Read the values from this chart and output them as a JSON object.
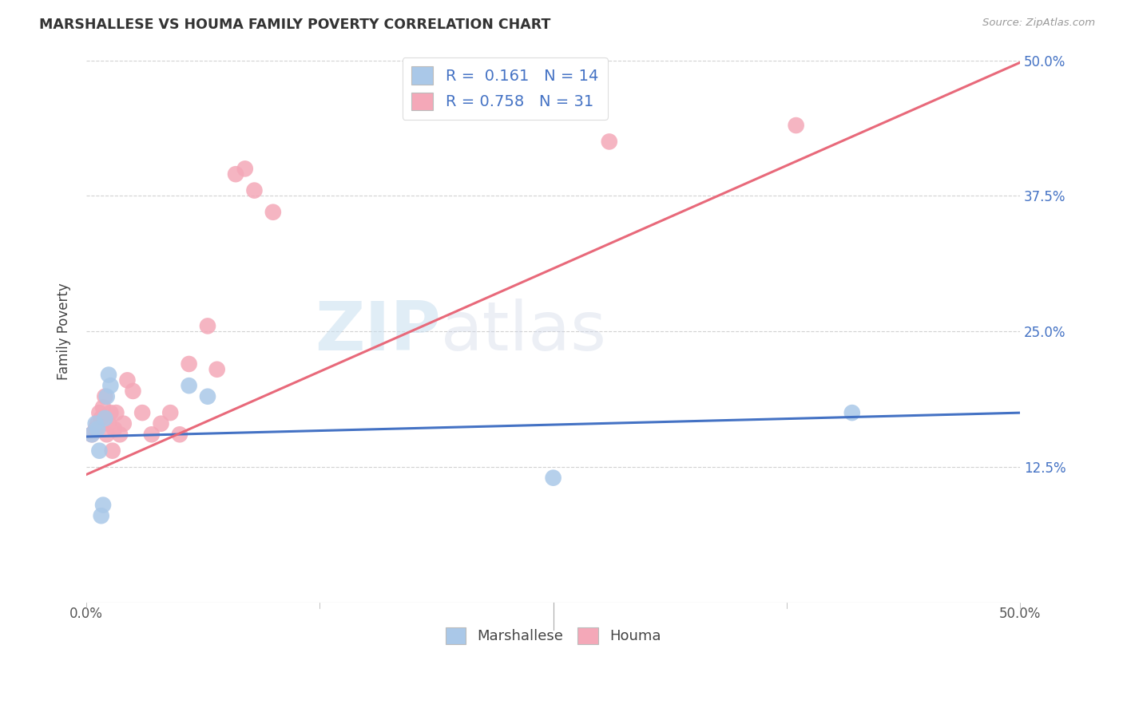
{
  "title": "MARSHALLESE VS HOUMA FAMILY POVERTY CORRELATION CHART",
  "source": "Source: ZipAtlas.com",
  "ylabel": "Family Poverty",
  "xlim": [
    0.0,
    0.5
  ],
  "ylim": [
    0.0,
    0.5
  ],
  "xtick_positions": [
    0.0,
    0.125,
    0.25,
    0.375,
    0.5
  ],
  "xticklabels": [
    "0.0%",
    "",
    "",
    "",
    "50.0%"
  ],
  "ytick_positions_right": [
    0.125,
    0.25,
    0.375,
    0.5
  ],
  "ytick_labels_right": [
    "12.5%",
    "25.0%",
    "37.5%",
    "50.0%"
  ],
  "grid_color": "#cccccc",
  "background_color": "#ffffff",
  "marshallese_color": "#aac8e8",
  "houma_color": "#f4a8b8",
  "trend_marshallese_color": "#4472c4",
  "trend_houma_color": "#e8697a",
  "legend_R_marshallese": "0.161",
  "legend_N_marshallese": "14",
  "legend_R_houma": "0.758",
  "legend_N_houma": "31",
  "marshallese_x": [
    0.003,
    0.005,
    0.006,
    0.007,
    0.008,
    0.009,
    0.01,
    0.011,
    0.012,
    0.013,
    0.055,
    0.065,
    0.41,
    0.25
  ],
  "marshallese_y": [
    0.155,
    0.165,
    0.16,
    0.14,
    0.08,
    0.09,
    0.17,
    0.19,
    0.21,
    0.2,
    0.2,
    0.19,
    0.175,
    0.115
  ],
  "houma_x": [
    0.003,
    0.005,
    0.006,
    0.007,
    0.008,
    0.009,
    0.01,
    0.011,
    0.012,
    0.013,
    0.014,
    0.015,
    0.016,
    0.018,
    0.02,
    0.022,
    0.025,
    0.03,
    0.035,
    0.04,
    0.045,
    0.05,
    0.055,
    0.065,
    0.07,
    0.08,
    0.085,
    0.09,
    0.1,
    0.28,
    0.38
  ],
  "houma_y": [
    0.155,
    0.16,
    0.165,
    0.175,
    0.17,
    0.18,
    0.19,
    0.155,
    0.165,
    0.175,
    0.14,
    0.16,
    0.175,
    0.155,
    0.165,
    0.205,
    0.195,
    0.175,
    0.155,
    0.165,
    0.175,
    0.155,
    0.22,
    0.255,
    0.215,
    0.395,
    0.4,
    0.38,
    0.36,
    0.425,
    0.44
  ],
  "trend_marshallese_x0": 0.0,
  "trend_marshallese_y0": 0.153,
  "trend_marshallese_x1": 0.5,
  "trend_marshallese_y1": 0.175,
  "trend_houma_x0": 0.0,
  "trend_houma_y0": 0.118,
  "trend_houma_x1": 0.5,
  "trend_houma_y1": 0.498
}
